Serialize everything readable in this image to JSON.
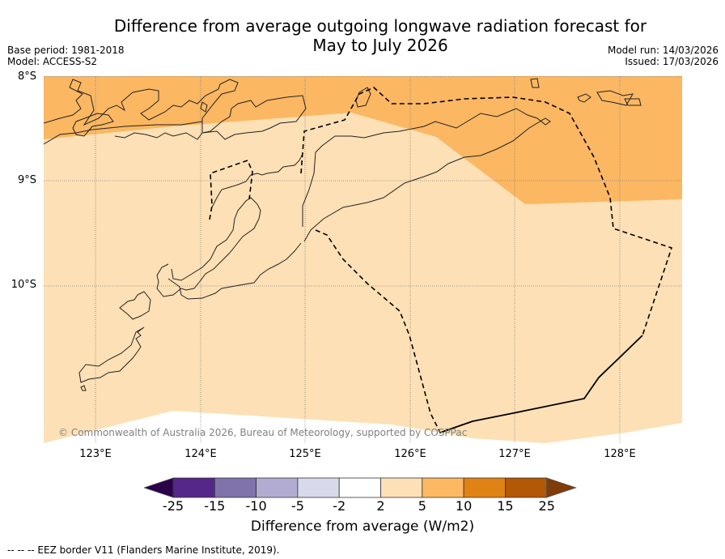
{
  "title_line1": "Difference from average outgoing longwave radiation forecast for",
  "title_line2": "May to July 2026",
  "meta": {
    "base_period": "Base period: 1981-2018",
    "model": "Model: ACCESS-S2",
    "model_run": "Model run: 14/03/2026",
    "issued": "Issued: 17/03/2026"
  },
  "map": {
    "lat_labels": [
      "8°S",
      "9°S",
      "10°S"
    ],
    "lon_labels": [
      "123°E",
      "124°E",
      "125°E",
      "126°E",
      "127°E",
      "128°E"
    ],
    "credit": "© Commonwealth of Australia 2026, Bureau of Meteorology, supported by COSPPac",
    "colors": {
      "cat_2_5": "#fde0b5",
      "cat_5_10": "#fbb762",
      "coastline": "#000000",
      "gridline": "#808080"
    }
  },
  "colorbar": {
    "ticks": [
      "-25",
      "-15",
      "-10",
      "-5",
      "-2",
      "2",
      "5",
      "10",
      "15",
      "25"
    ],
    "colors": [
      "#2d004b",
      "#542788",
      "#8073ac",
      "#b2abd2",
      "#d8daeb",
      "#ffffff",
      "#fee0b6",
      "#fdb863",
      "#e08214",
      "#b35806",
      "#7f3b08"
    ],
    "label": "Difference from average (W/m2)"
  },
  "footnote": "--  --  -- EEZ border V11 (Flanders Marine Institute, 2019)."
}
